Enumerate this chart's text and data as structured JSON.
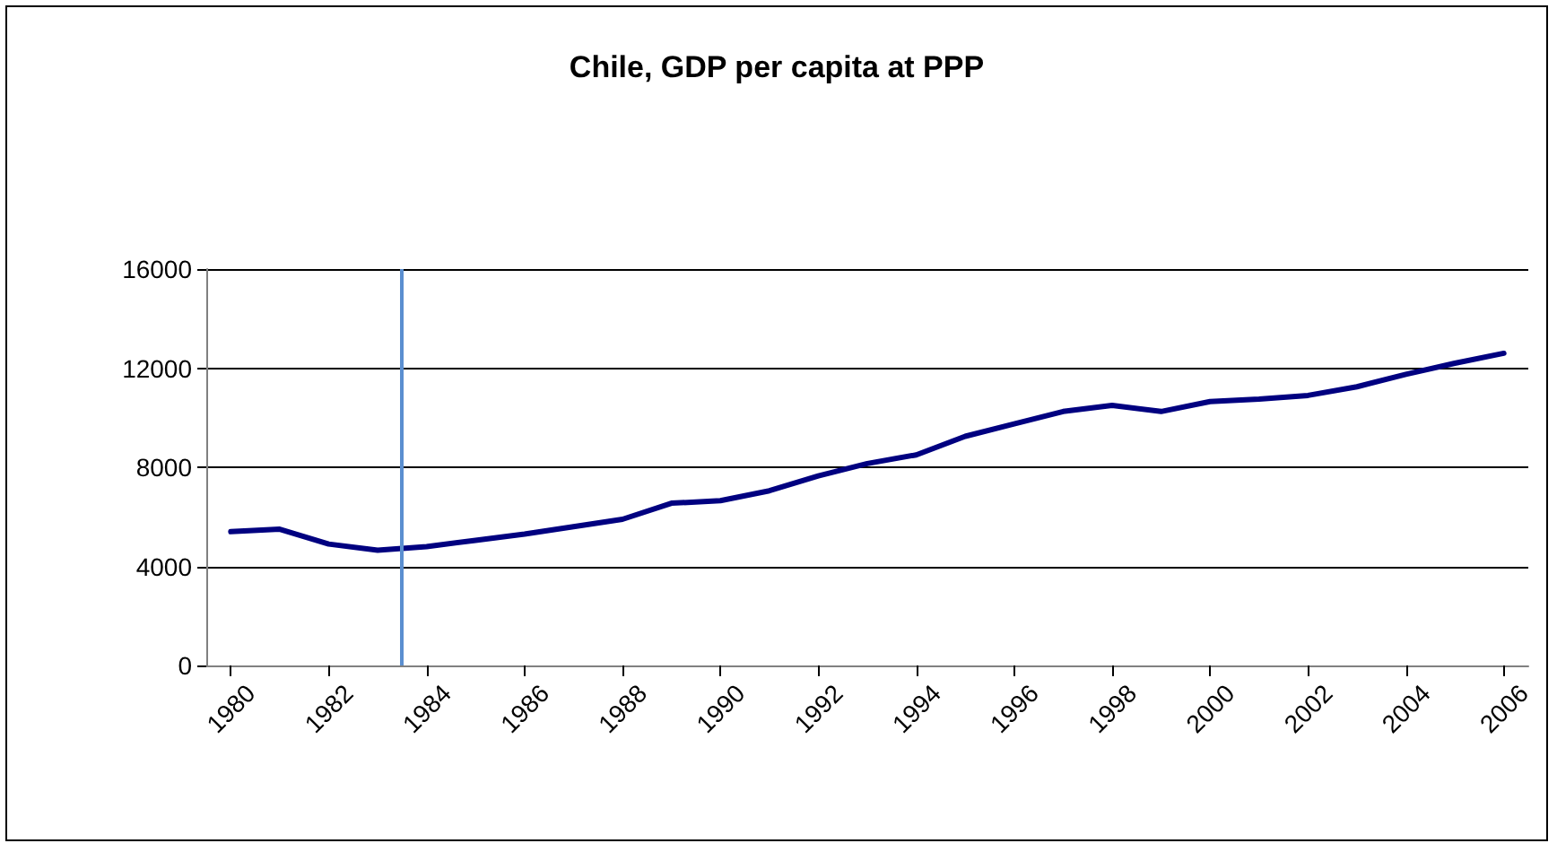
{
  "chart_data": {
    "type": "line",
    "title": "Chile, GDP per capita at PPP",
    "x": [
      1980,
      1981,
      1982,
      1983,
      1984,
      1985,
      1986,
      1987,
      1988,
      1989,
      1990,
      1991,
      1992,
      1993,
      1994,
      1995,
      1996,
      1997,
      1998,
      1999,
      2000,
      2001,
      2002,
      2003,
      2004,
      2005,
      2006
    ],
    "series": [
      {
        "color": "#000080",
        "values": [
          5400,
          5500,
          4900,
          4650,
          4800,
          5050,
          5300,
          5600,
          5900,
          6550,
          6650,
          7050,
          7650,
          8150,
          8500,
          9250,
          9750,
          10250,
          10500,
          10250,
          10650,
          10750,
          10900,
          11250,
          11750,
          12200,
          12600
        ]
      }
    ],
    "xlim": [
      1979.5,
      2006.5
    ],
    "xticks": [
      1980,
      1982,
      1984,
      1986,
      1988,
      1990,
      1992,
      1994,
      1996,
      1998,
      2000,
      2002,
      2004,
      2006
    ],
    "ylim": [
      0,
      16000
    ],
    "yticks": [
      0,
      4000,
      8000,
      12000,
      16000
    ],
    "grid": "y",
    "marker": "none",
    "line_style": "solid",
    "ref_lines": [
      {
        "axis": "x",
        "value": 1983.5,
        "color": "#5b8fd0"
      }
    ]
  }
}
